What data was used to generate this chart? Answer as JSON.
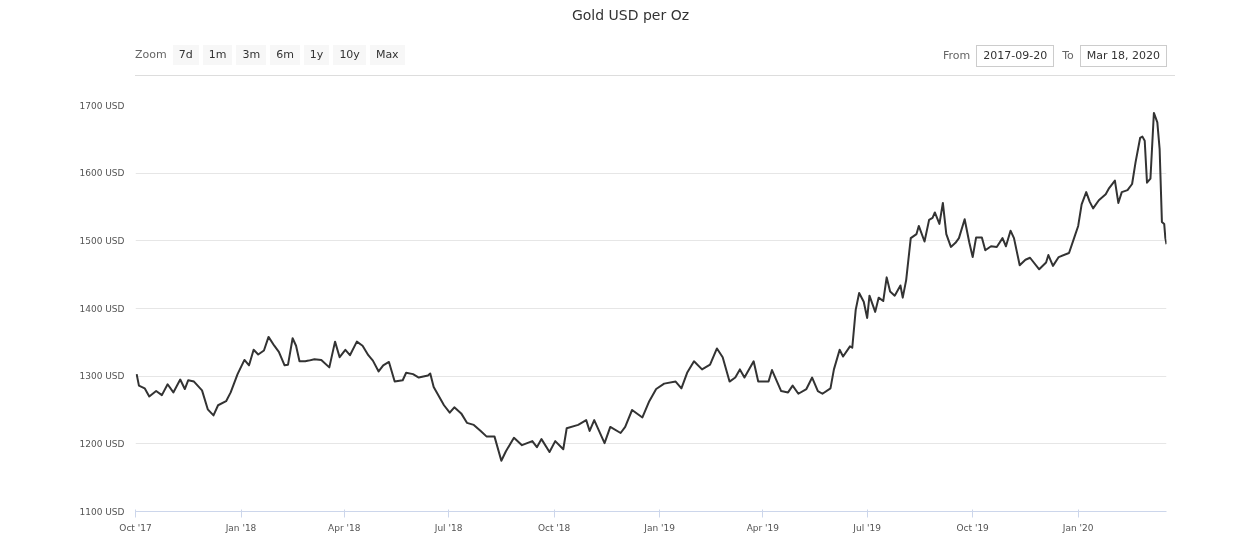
{
  "chart_data": {
    "type": "line",
    "title": "Gold USD per Oz",
    "annotations": [
      "Zoom",
      "7d",
      "1m",
      "3m",
      "6m",
      "1y",
      "10y",
      "Max",
      "From",
      "2017-09-20",
      "To",
      "Mar 18, 2020"
    ],
    "x": [
      "2017-10-02",
      "2017-10-04",
      "2017-10-09",
      "2017-10-13",
      "2017-10-19",
      "2017-10-24",
      "2017-10-29",
      "2017-11-03",
      "2017-11-09",
      "2017-11-13",
      "2017-11-16",
      "2017-11-21",
      "2017-11-28",
      "2017-12-03",
      "2017-12-08",
      "2017-12-12",
      "2017-12-19",
      "2017-12-23",
      "2017-12-29",
      "2018-01-04",
      "2018-01-08",
      "2018-01-12",
      "2018-01-16",
      "2018-01-21",
      "2018-01-25",
      "2018-01-30",
      "2018-02-03",
      "2018-02-08",
      "2018-02-11",
      "2018-02-15",
      "2018-02-18",
      "2018-02-21",
      "2018-02-26",
      "2018-03-01",
      "2018-03-06",
      "2018-03-12",
      "2018-03-19",
      "2018-03-24",
      "2018-03-28",
      "2018-04-02",
      "2018-04-06",
      "2018-04-12",
      "2018-04-17",
      "2018-04-22",
      "2018-04-26",
      "2018-05-01",
      "2018-05-05",
      "2018-05-10",
      "2018-05-15",
      "2018-05-22",
      "2018-05-25",
      "2018-05-31",
      "2018-06-05",
      "2018-06-13",
      "2018-06-15",
      "2018-06-18",
      "2018-06-27",
      "2018-07-02",
      "2018-07-06",
      "2018-07-12",
      "2018-07-17",
      "2018-07-23",
      "2018-07-29",
      "2018-08-03",
      "2018-08-10",
      "2018-08-16",
      "2018-08-20",
      "2018-08-27",
      "2018-09-03",
      "2018-09-12",
      "2018-09-16",
      "2018-09-20",
      "2018-09-27",
      "2018-10-02",
      "2018-10-09",
      "2018-10-12",
      "2018-10-22",
      "2018-10-29",
      "2018-11-01",
      "2018-11-05",
      "2018-11-14",
      "2018-11-19",
      "2018-11-28",
      "2018-12-02",
      "2018-12-08",
      "2018-12-17",
      "2018-12-23",
      "2018-12-29",
      "2019-01-05",
      "2019-01-15",
      "2019-01-20",
      "2019-01-25",
      "2019-01-31",
      "2019-02-07",
      "2019-02-14",
      "2019-02-20",
      "2019-02-25",
      "2019-03-03",
      "2019-03-08",
      "2019-03-12",
      "2019-03-16",
      "2019-03-24",
      "2019-03-28",
      "2019-04-06",
      "2019-04-09",
      "2019-04-17",
      "2019-04-23",
      "2019-04-27",
      "2019-05-02",
      "2019-05-09",
      "2019-05-14",
      "2019-05-19",
      "2019-05-23",
      "2019-05-30",
      "2019-06-02",
      "2019-06-07",
      "2019-06-10",
      "2019-06-16",
      "2019-06-18",
      "2019-06-21",
      "2019-06-24",
      "2019-06-28",
      "2019-07-01",
      "2019-07-03",
      "2019-07-08",
      "2019-07-11",
      "2019-07-15",
      "2019-07-18",
      "2019-07-21",
      "2019-07-25",
      "2019-07-30",
      "2019-08-01",
      "2019-08-04",
      "2019-08-08",
      "2019-08-13",
      "2019-08-15",
      "2019-08-20",
      "2019-08-24",
      "2019-08-27",
      "2019-08-29",
      "2019-09-02",
      "2019-09-05",
      "2019-09-08",
      "2019-09-12",
      "2019-09-16",
      "2019-09-19",
      "2019-09-24",
      "2019-09-28",
      "2019-10-01",
      "2019-10-04",
      "2019-10-09",
      "2019-10-12",
      "2019-10-17",
      "2019-10-22",
      "2019-10-27",
      "2019-10-30",
      "2019-11-03",
      "2019-11-06",
      "2019-11-11",
      "2019-11-16",
      "2019-11-20",
      "2019-11-28",
      "2019-12-04",
      "2019-12-06",
      "2019-12-10",
      "2019-12-15",
      "2019-12-24",
      "2019-12-29",
      "2020-01-01",
      "2020-01-04",
      "2020-01-08",
      "2020-01-11",
      "2020-01-14",
      "2020-01-19",
      "2020-01-25",
      "2020-01-28",
      "2020-02-02",
      "2020-02-05",
      "2020-02-08",
      "2020-02-13",
      "2020-02-17",
      "2020-02-20",
      "2020-02-24",
      "2020-02-26",
      "2020-02-28",
      "2020-03-01",
      "2020-03-04",
      "2020-03-07",
      "2020-03-10",
      "2020-03-12",
      "2020-03-14",
      "2020-03-16",
      "2020-03-17",
      "2020-03-18"
    ],
    "series": [
      {
        "color": "#333333",
        "values": [
          1303,
          1286,
          1282,
          1270,
          1278,
          1272,
          1288,
          1276,
          1295,
          1281,
          1294,
          1292,
          1279,
          1251,
          1242,
          1257,
          1263,
          1276,
          1303,
          1324,
          1316,
          1339,
          1332,
          1338,
          1358,
          1345,
          1336,
          1316,
          1317,
          1356,
          1345,
          1322,
          1322,
          1323,
          1325,
          1324,
          1313,
          1351,
          1328,
          1339,
          1331,
          1351,
          1345,
          1331,
          1323,
          1307,
          1316,
          1321,
          1292,
          1294,
          1305,
          1303,
          1298,
          1301,
          1304,
          1284,
          1257,
          1246,
          1254,
          1245,
          1231,
          1228,
          1219,
          1211,
          1211,
          1175,
          1189,
          1209,
          1198,
          1204,
          1195,
          1207,
          1188,
          1204,
          1192,
          1223,
          1228,
          1235,
          1219,
          1235,
          1201,
          1225,
          1216,
          1225,
          1250,
          1239,
          1263,
          1281,
          1289,
          1292,
          1282,
          1305,
          1322,
          1310,
          1317,
          1341,
          1328,
          1292,
          1298,
          1310,
          1298,
          1322,
          1292,
          1292,
          1309,
          1278,
          1276,
          1286,
          1274,
          1281,
          1298,
          1278,
          1274,
          1282,
          1310,
          1339,
          1329,
          1344,
          1342,
          1398,
          1423,
          1410,
          1386,
          1419,
          1395,
          1416,
          1411,
          1446,
          1425,
          1419,
          1434,
          1416,
          1442,
          1504,
          1510,
          1522,
          1499,
          1531,
          1534,
          1542,
          1525,
          1556,
          1510,
          1491,
          1497,
          1504,
          1532,
          1498,
          1476,
          1505,
          1505,
          1486,
          1492,
          1491,
          1504,
          1492,
          1515,
          1504,
          1464,
          1472,
          1475,
          1458,
          1468,
          1479,
          1463,
          1476,
          1482,
          1507,
          1522,
          1554,
          1572,
          1558,
          1548,
          1560,
          1569,
          1578,
          1589,
          1556,
          1572,
          1575,
          1584,
          1616,
          1652,
          1654,
          1648,
          1586,
          1592,
          1689,
          1675,
          1636,
          1528,
          1525,
          1504,
          1495
        ]
      }
    ],
    "xlim": [
      "2017-10-01",
      "2020-03-18"
    ],
    "xticks": [
      {
        "value": "2017-10-01",
        "label": "Oct '17"
      },
      {
        "value": "2018-01-01",
        "label": "Jan '18"
      },
      {
        "value": "2018-04-01",
        "label": "Apr '18"
      },
      {
        "value": "2018-07-01",
        "label": "Jul '18"
      },
      {
        "value": "2018-10-01",
        "label": "Oct '18"
      },
      {
        "value": "2019-01-01",
        "label": "Jan '19"
      },
      {
        "value": "2019-04-01",
        "label": "Apr '19"
      },
      {
        "value": "2019-07-01",
        "label": "Jul '19"
      },
      {
        "value": "2019-10-01",
        "label": "Oct '19"
      },
      {
        "value": "2020-01-01",
        "label": "Jan '20"
      }
    ],
    "ylim": [
      1100,
      1700
    ],
    "yticks": [
      {
        "value": 1100,
        "label": "1100 USD"
      },
      {
        "value": 1200,
        "label": "1200 USD"
      },
      {
        "value": 1300,
        "label": "1300 USD"
      },
      {
        "value": 1400,
        "label": "1400 USD"
      },
      {
        "value": 1500,
        "label": "1500 USD"
      },
      {
        "value": 1600,
        "label": "1600 USD"
      },
      {
        "value": 1700,
        "label": "1700 USD"
      }
    ],
    "grid": "y",
    "marker": "none",
    "line_style": "solid"
  }
}
